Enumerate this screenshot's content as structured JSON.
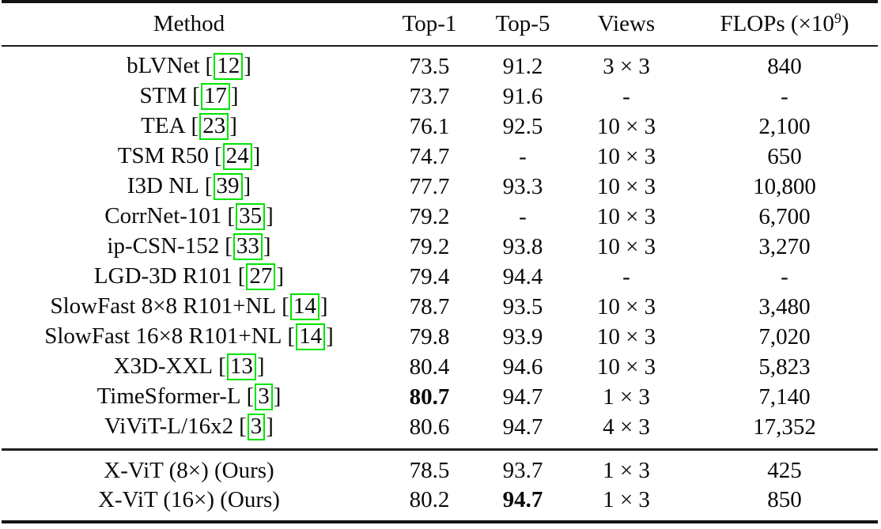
{
  "page": {
    "background": "#ffffff",
    "citation_box_color": "#00e400",
    "text_color": "#0a0a0a"
  },
  "table": {
    "columns": {
      "method": "Method",
      "top1": "Top-1",
      "top5": "Top-5",
      "views": "Views",
      "flops_prefix": "FLOPs (×10",
      "flops_sup": "9",
      "flops_suffix": ")"
    },
    "cite_open": "[",
    "cite_close": "]",
    "rows": [
      {
        "group": "main",
        "method": "bLVNet",
        "cite": "12",
        "top1": "73.5",
        "top5": "91.2",
        "views": "3 × 3",
        "flops": "840",
        "top1_bold": false,
        "top5_bold": false
      },
      {
        "group": "main",
        "method": "STM",
        "cite": "17",
        "top1": "73.7",
        "top5": "91.6",
        "views": "-",
        "flops": "-",
        "top1_bold": false,
        "top5_bold": false
      },
      {
        "group": "main",
        "method": "TEA",
        "cite": "23",
        "top1": "76.1",
        "top5": "92.5",
        "views": "10 × 3",
        "flops": "2,100",
        "top1_bold": false,
        "top5_bold": false
      },
      {
        "group": "main",
        "method": "TSM R50",
        "cite": "24",
        "top1": "74.7",
        "top5": "-",
        "views": "10 × 3",
        "flops": "650",
        "top1_bold": false,
        "top5_bold": false
      },
      {
        "group": "main",
        "method": "I3D NL",
        "cite": "39",
        "top1": "77.7",
        "top5": "93.3",
        "views": "10 × 3",
        "flops": "10,800",
        "top1_bold": false,
        "top5_bold": false
      },
      {
        "group": "main",
        "method": "CorrNet-101",
        "cite": "35",
        "top1": "79.2",
        "top5": "-",
        "views": "10 × 3",
        "flops": "6,700",
        "top1_bold": false,
        "top5_bold": false
      },
      {
        "group": "main",
        "method": "ip-CSN-152",
        "cite": "33",
        "top1": "79.2",
        "top5": "93.8",
        "views": "10 × 3",
        "flops": "3,270",
        "top1_bold": false,
        "top5_bold": false
      },
      {
        "group": "main",
        "method": "LGD-3D R101",
        "cite": "27",
        "top1": "79.4",
        "top5": "94.4",
        "views": "-",
        "flops": "-",
        "top1_bold": false,
        "top5_bold": false
      },
      {
        "group": "main",
        "method": "SlowFast 8×8 R101+NL",
        "cite": "14",
        "top1": "78.7",
        "top5": "93.5",
        "views": "10 × 3",
        "flops": "3,480",
        "top1_bold": false,
        "top5_bold": false
      },
      {
        "group": "main",
        "method": "SlowFast 16×8 R101+NL",
        "cite": "14",
        "top1": "79.8",
        "top5": "93.9",
        "views": "10 × 3",
        "flops": "7,020",
        "top1_bold": false,
        "top5_bold": false
      },
      {
        "group": "main",
        "method": "X3D-XXL",
        "cite": "13",
        "top1": "80.4",
        "top5": "94.6",
        "views": "10 × 3",
        "flops": "5,823",
        "top1_bold": false,
        "top5_bold": false
      },
      {
        "group": "main",
        "method": "TimeSformer-L",
        "cite": "3",
        "top1": "80.7",
        "top5": "94.7",
        "views": "1 × 3",
        "flops": "7,140",
        "top1_bold": true,
        "top5_bold": false
      },
      {
        "group": "main",
        "method": "ViViT-L/16x2",
        "cite": "3",
        "top1": "80.6",
        "top5": "94.7",
        "views": "4 × 3",
        "flops": "17,352",
        "top1_bold": false,
        "top5_bold": false
      },
      {
        "group": "ours",
        "method": "X-ViT (8×) (Ours)",
        "cite": null,
        "top1": "78.5",
        "top5": "93.7",
        "views": "1 × 3",
        "flops": "425",
        "top1_bold": false,
        "top5_bold": false
      },
      {
        "group": "ours",
        "method": "X-ViT (16×) (Ours)",
        "cite": null,
        "top1": "80.2",
        "top5": "94.7",
        "views": "1 × 3",
        "flops": "850",
        "top1_bold": false,
        "top5_bold": true
      }
    ]
  }
}
